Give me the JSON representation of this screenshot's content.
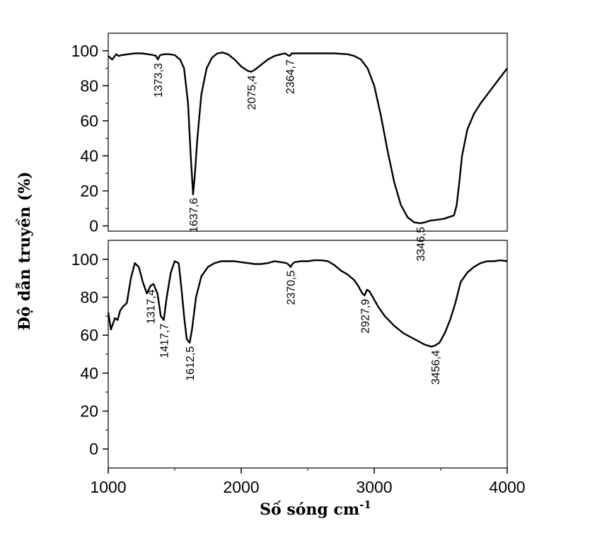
{
  "chart_data": {
    "type": "line",
    "ylabel": "Độ dẫn truyền (%)",
    "xlabel": "Số sóng cm",
    "xlabel_sup": "-1",
    "xlim": [
      1000,
      4000
    ],
    "x_ticks": [
      1000,
      2000,
      3000,
      4000
    ],
    "panels": [
      {
        "id": "top",
        "ylim": [
          -3,
          110
        ],
        "y_ticks": [
          0,
          20,
          40,
          60,
          80,
          100
        ],
        "series": {
          "x": [
            1000,
            1030,
            1060,
            1080,
            1100,
            1150,
            1200,
            1250,
            1300,
            1340,
            1360,
            1373,
            1390,
            1420,
            1460,
            1500,
            1540,
            1570,
            1600,
            1620,
            1637.6,
            1650,
            1670,
            1700,
            1740,
            1780,
            1820,
            1860,
            1900,
            1950,
            2000,
            2050,
            2075.4,
            2100,
            2150,
            2200,
            2250,
            2300,
            2330,
            2350,
            2364.7,
            2380,
            2420,
            2500,
            2600,
            2700,
            2800,
            2850,
            2900,
            2950,
            3000,
            3050,
            3100,
            3150,
            3200,
            3250,
            3300,
            3346.5,
            3380,
            3420,
            3470,
            3520,
            3560,
            3600,
            3620,
            3640,
            3660,
            3700,
            3750,
            3800,
            3850,
            3900,
            3950,
            4000
          ],
          "y": [
            97,
            95,
            98,
            97,
            97.5,
            98,
            98.5,
            98.5,
            98,
            97.5,
            97,
            95,
            97.5,
            98,
            98,
            97.5,
            95,
            90,
            70,
            40,
            18,
            28,
            50,
            75,
            90,
            96,
            98.5,
            99,
            98,
            95,
            91,
            88.5,
            88,
            89,
            92,
            95,
            97,
            98,
            98.5,
            97.5,
            97,
            98.5,
            98.5,
            98.5,
            98.5,
            98.5,
            98,
            97,
            95,
            90,
            80,
            63,
            43,
            25,
            12,
            5,
            2,
            1.5,
            2,
            3,
            3.5,
            4,
            5,
            6,
            12,
            25,
            40,
            55,
            64,
            70,
            75,
            80,
            85,
            90
          ]
        },
        "annotations": [
          {
            "label": "1373,3",
            "x": 1373.3,
            "y": 95
          },
          {
            "label": "1637,6",
            "x": 1637.6,
            "y": 18
          },
          {
            "label": "2075,4",
            "x": 2075.4,
            "y": 88
          },
          {
            "label": "2364,7",
            "x": 2364.7,
            "y": 97
          },
          {
            "label": "3346,5",
            "x": 3346.5,
            "y": 1.5
          }
        ]
      },
      {
        "id": "bottom",
        "ylim": [
          -10,
          110
        ],
        "y_ticks": [
          0,
          20,
          40,
          60,
          80,
          100
        ],
        "series": {
          "x": [
            1000,
            1020,
            1035,
            1050,
            1070,
            1090,
            1110,
            1140,
            1170,
            1200,
            1230,
            1260,
            1290,
            1317.4,
            1340,
            1370,
            1395,
            1417.7,
            1440,
            1470,
            1500,
            1530,
            1550,
            1570,
            1590,
            1612.5,
            1630,
            1660,
            1700,
            1750,
            1800,
            1850,
            1900,
            1950,
            2000,
            2050,
            2100,
            2150,
            2200,
            2250,
            2300,
            2340,
            2360,
            2370.5,
            2385,
            2400,
            2450,
            2500,
            2550,
            2600,
            2650,
            2700,
            2750,
            2800,
            2850,
            2880,
            2910,
            2927.9,
            2945,
            2965,
            2990,
            3030,
            3080,
            3150,
            3220,
            3300,
            3380,
            3430,
            3456.4,
            3490,
            3530,
            3570,
            3610,
            3650,
            3700,
            3750,
            3800,
            3850,
            3900,
            3950,
            4000
          ],
          "y": [
            72,
            63,
            66,
            69,
            68,
            73,
            75,
            77,
            90,
            98,
            96,
            88,
            82,
            86,
            87,
            82,
            70,
            68,
            80,
            93,
            99,
            98,
            85,
            70,
            58,
            56,
            63,
            80,
            91,
            96,
            98,
            99,
            99,
            99,
            98.5,
            98,
            97.5,
            97.5,
            98,
            99,
            98.5,
            98,
            97,
            96,
            97.5,
            98.5,
            99,
            99,
            99.5,
            99.5,
            99,
            97,
            94,
            92,
            89,
            86,
            82,
            81,
            84,
            83,
            80,
            75,
            70,
            65,
            61,
            58,
            55,
            54,
            54.5,
            56,
            61,
            68,
            77,
            88,
            93,
            96,
            98,
            99,
            99,
            99.5,
            99
          ]
        },
        "annotations": [
          {
            "label": "1317,4",
            "x": 1317.4,
            "y": 86
          },
          {
            "label": "1417,7",
            "x": 1417.7,
            "y": 68
          },
          {
            "label": "1612,5",
            "x": 1612.5,
            "y": 56
          },
          {
            "label": "2370,5",
            "x": 2370.5,
            "y": 96
          },
          {
            "label": "2927,9",
            "x": 2927.9,
            "y": 81
          },
          {
            "label": "3456,4",
            "x": 3456.4,
            "y": 54
          }
        ]
      }
    ]
  }
}
